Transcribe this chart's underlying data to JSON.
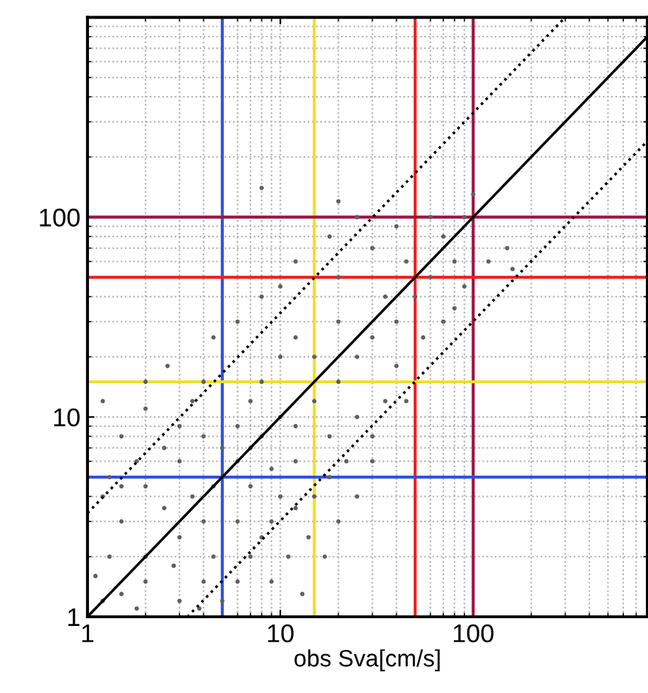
{
  "chart_data": {
    "type": "scatter",
    "xlabel": "obs Sva[cm/s]",
    "log": "xy",
    "xlim": [
      1,
      800
    ],
    "ylim": [
      1,
      1000
    ],
    "xticks": [
      1,
      10,
      100
    ],
    "yticks": [
      1,
      10,
      100
    ],
    "grid": true,
    "series": [
      {
        "marker": "circle",
        "color": "#606060",
        "x": [
          1.2,
          1.5,
          2,
          3,
          4,
          1.3,
          2,
          3,
          4,
          1.5,
          2.5,
          3.5,
          1.2,
          2,
          4.5,
          4.5,
          1.1,
          1.8,
          2.8,
          3.8,
          5,
          6,
          7,
          8,
          6,
          9,
          10,
          7,
          12,
          15,
          18,
          20,
          11,
          9,
          14,
          25,
          30,
          13,
          17,
          1.3,
          1.8,
          2.5,
          3,
          1.5,
          2,
          3.5,
          4,
          5,
          6,
          7,
          8,
          10,
          12,
          1.2,
          2.6,
          4.5,
          6,
          8,
          10,
          12,
          20,
          18,
          25,
          30,
          6,
          8,
          10,
          12,
          15,
          20,
          15,
          25,
          30,
          20,
          35,
          40,
          50,
          45,
          60,
          70,
          80,
          90,
          60,
          100,
          40,
          55,
          70,
          80,
          90,
          120,
          150,
          35,
          40,
          25,
          30,
          45,
          12,
          18,
          22,
          7,
          9,
          5,
          4,
          3,
          8,
          20,
          160,
          2,
          1.5
        ],
        "values": [
          1.2,
          1.3,
          1.5,
          1.2,
          1.5,
          2,
          2,
          2.5,
          3,
          3,
          3.5,
          4,
          4,
          4.5,
          2,
          4.5,
          1.6,
          1.1,
          1.8,
          1.1,
          1.2,
          1.5,
          2,
          2.5,
          3,
          3,
          4,
          4.5,
          3.5,
          4,
          5,
          3,
          2,
          1.5,
          2.5,
          4,
          6,
          1.3,
          2,
          5,
          6,
          7,
          9,
          8,
          11,
          12,
          15,
          7,
          9,
          12,
          15,
          20,
          25,
          12,
          18,
          25,
          30,
          40,
          45,
          60,
          50,
          80,
          100,
          70,
          6,
          8,
          10,
          9,
          12,
          15,
          20,
          20,
          25,
          30,
          40,
          30,
          40,
          60,
          50,
          80,
          60,
          100,
          100,
          130,
          90,
          25,
          30,
          35,
          45,
          60,
          70,
          12,
          18,
          10,
          8,
          12,
          6,
          8,
          6,
          7,
          5.5,
          5,
          8,
          6,
          140,
          120,
          55,
          15,
          4.5
        ]
      },
      {
        "type": "line",
        "color": "#000000",
        "line_style": "solid",
        "x": [
          1,
          800
        ],
        "values": [
          1,
          800
        ]
      },
      {
        "type": "line",
        "color": "#000000",
        "line_style": "dotted",
        "x": [
          1,
          300
        ],
        "values": [
          3.3,
          1000
        ]
      },
      {
        "type": "line",
        "color": "#000000",
        "line_style": "dotted",
        "x": [
          3.3,
          800
        ],
        "values": [
          1,
          240
        ]
      }
    ],
    "ref_lines": [
      {
        "axis": "x",
        "value": 5,
        "color": "#3050e0"
      },
      {
        "axis": "x",
        "value": 15,
        "color": "#f0e020"
      },
      {
        "axis": "x",
        "value": 50,
        "color": "#f02020"
      },
      {
        "axis": "x",
        "value": 100,
        "color": "#a01040"
      },
      {
        "axis": "y",
        "value": 5,
        "color": "#3050e0"
      },
      {
        "axis": "y",
        "value": 15,
        "color": "#f0e020"
      },
      {
        "axis": "y",
        "value": 50,
        "color": "#f02020"
      },
      {
        "axis": "y",
        "value": 100,
        "color": "#a01040"
      }
    ]
  }
}
